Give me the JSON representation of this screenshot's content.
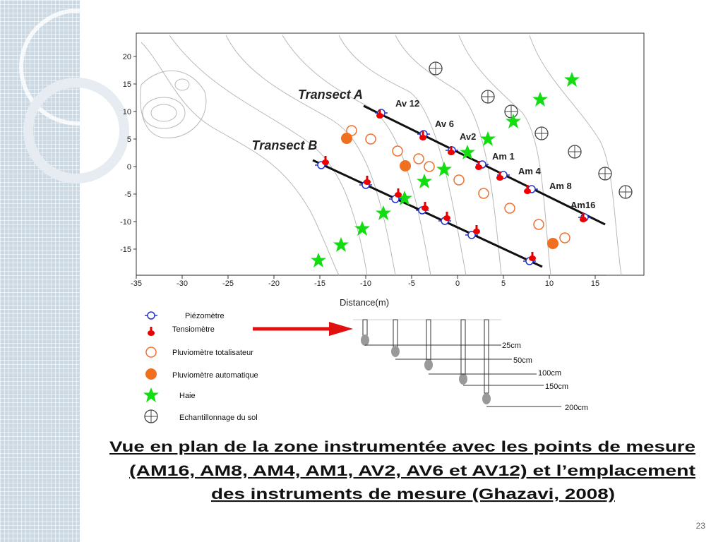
{
  "figure": {
    "y_ticks": [
      "20",
      "15",
      "10",
      "5",
      "0",
      "-5",
      "-10",
      "-15"
    ],
    "x_ticks": [
      "-35",
      "-30",
      "-25",
      "-20",
      "-15",
      "-10",
      "-5",
      "0",
      "5",
      "10",
      "15"
    ],
    "x_label": "Distance(m)",
    "transects": [
      "Transect A",
      "Transect B"
    ],
    "station_labels": [
      "Av 12",
      "Av 6",
      "Av2",
      "Am 1",
      "Am 4",
      "Am 8",
      "Am16"
    ],
    "legend": [
      "Piézomètre",
      "Tensiomètre",
      "Pluviomètre totalisateur",
      "Pluviomètre automatique",
      "Haie",
      "Echantillonnage du sol"
    ],
    "depths": [
      "25cm",
      "50cm",
      "100cm",
      "150cm",
      "200cm"
    ]
  },
  "caption": [
    "Vue en plan de la zone instrumentée avec les points de mesure",
    "(AM16, AM8, AM4, AM1, AV2, AV6 et AV12) et l’emplacement",
    "des instruments de mesure (Ghazavi, 2008)"
  ],
  "page_number": "23"
}
